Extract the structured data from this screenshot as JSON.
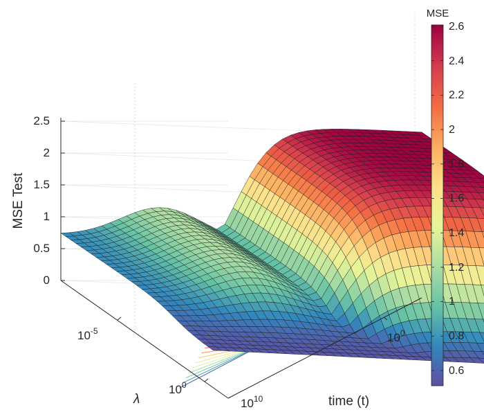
{
  "chart_data": {
    "type": "surface",
    "zlabel": "MSE Test",
    "xlabel": "time (t)",
    "ylabel": "λ",
    "colorbar_title": "MSE",
    "colormap": "spectral",
    "colormap_stops": [
      "#5e4fa2",
      "#3288bd",
      "#66c2a5",
      "#abdda4",
      "#e6f598",
      "#fee08b",
      "#fdae61",
      "#f46d43",
      "#d53e4f",
      "#9e0142"
    ],
    "clim": [
      0.5,
      2.6
    ],
    "zlim": [
      0,
      2.6
    ],
    "z_ticks": [
      "0",
      "0.5",
      "1",
      "1.5",
      "2",
      "2.5"
    ],
    "time_ticks": [
      "10",
      "0"
    ],
    "time_tick_text": [
      "10^10",
      "10^0"
    ],
    "lambda_ticks": [
      "-5",
      "0"
    ],
    "lambda_tick_text": [
      "10^-5",
      "10^0"
    ],
    "colorbar_ticks": [
      "0.6",
      "0.8",
      "1",
      "1.2",
      "1.4",
      "1.6",
      "1.8",
      "2",
      "2.2",
      "2.4",
      "2.6"
    ],
    "grid": true,
    "contour_projection": true,
    "description_values": {
      "mse_at_large_lambda": 0.72,
      "mse_minimum": 0.52,
      "mse_peak_small_lambda_early_time": 2.6,
      "lambda_shoulder_mse": 1.25
    }
  },
  "labels": {
    "zlabel": "MSE Test",
    "xlabel": "time (t)",
    "ylabel": "λ",
    "cbar_title": "MSE",
    "z_tick_0": "0",
    "z_tick_1": "0.5",
    "z_tick_2": "1",
    "z_tick_3": "1.5",
    "z_tick_4": "2",
    "z_tick_5": "2.5",
    "cb_0": "0.6",
    "cb_1": "0.8",
    "cb_2": "1",
    "cb_3": "1.2",
    "cb_4": "1.4",
    "cb_5": "1.6",
    "cb_6": "1.8",
    "cb_7": "2",
    "cb_8": "2.2",
    "cb_9": "2.4",
    "cb_10": "2.6",
    "t_base_0": "10",
    "t_exp_0": "10",
    "t_base_1": "10",
    "t_exp_1": "0",
    "l_base_0": "10",
    "l_exp_0": "-5",
    "l_base_1": "10",
    "l_exp_1": "0"
  }
}
